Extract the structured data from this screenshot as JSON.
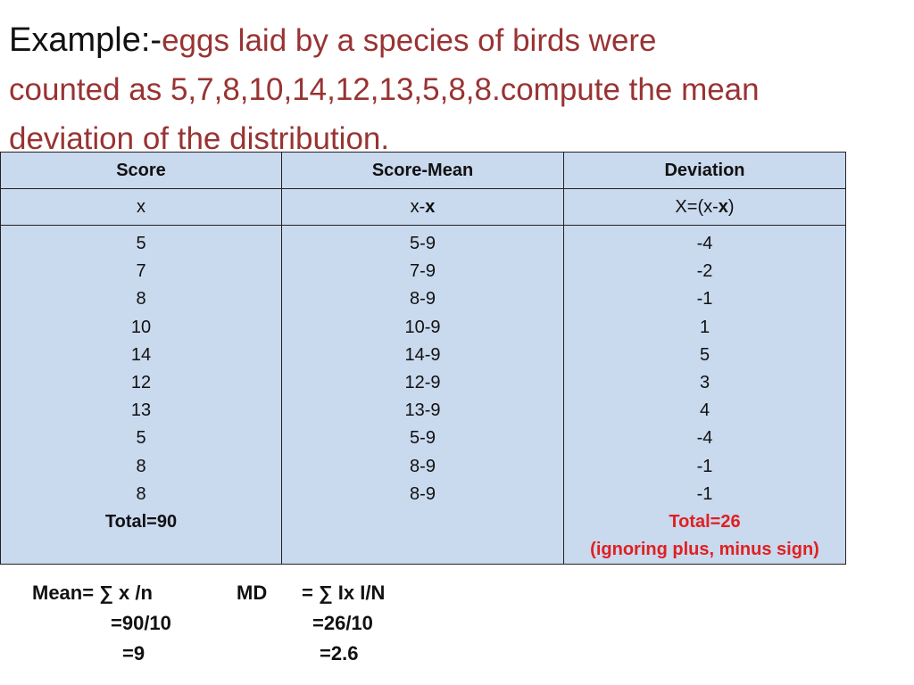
{
  "title": {
    "lead": "Example:-",
    "line1_rest": "eggs laid by a species of birds were",
    "line2": "counted as 5,7,8,10,14,12,13,5,8,8.compute the mean",
    "line3": "deviation of the distribution."
  },
  "table": {
    "headers": [
      "Score",
      "Score-Mean",
      "Deviation"
    ],
    "subheaders": {
      "col1": "x",
      "col2_prefix": "x-",
      "col2_bold": "x",
      "col3_prefix": "X=(x-",
      "col3_bold": "x",
      "col3_suffix": ")"
    },
    "scores": [
      "5",
      "7",
      "8",
      "10",
      "14",
      "12",
      "13",
      "5",
      "8",
      "8"
    ],
    "score_minus_mean": [
      "5-9",
      "7-9",
      "8-9",
      "10-9",
      "14-9",
      "12-9",
      "13-9",
      "5-9",
      "8-9",
      "8-9"
    ],
    "deviations": [
      "-4",
      "-2",
      "-1",
      "1",
      "5",
      "3",
      "4",
      "-4",
      "-1",
      "-1"
    ],
    "score_total": "Total=90",
    "deviation_total": "Total=26",
    "deviation_note": "(ignoring plus, minus sign)"
  },
  "calculation": {
    "mean": [
      "Mean= ∑ x /n",
      "=90/10",
      "=9"
    ],
    "md": [
      "MD",
      "= ∑ Ix I/N",
      "=26/10",
      "=2.6"
    ]
  },
  "colors": {
    "title_text": "#993333",
    "table_fill": "#c9d9ee",
    "total_red": "#e02020"
  }
}
